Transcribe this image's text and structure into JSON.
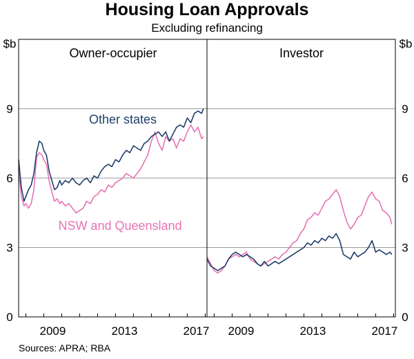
{
  "title": "Housing Loan Approvals",
  "subtitle": "Excluding refinancing",
  "source": "Sources: APRA; RBA",
  "chart_data": [
    {
      "type": "line",
      "panel": "Owner-occupier",
      "ylabel": "$b",
      "ylim": [
        0,
        12
      ],
      "yticks": [
        0,
        3,
        6,
        9
      ],
      "xlim": [
        2007.6,
        2018.1
      ],
      "xticks": [
        2009,
        2013,
        2017
      ],
      "xtick_labels": [
        "2009",
        "2013",
        "2017"
      ],
      "grid": true,
      "series": [
        {
          "name": "Other states",
          "color": "#1f3f6b",
          "x": [
            2007.6,
            2007.75,
            2007.9,
            2008.0,
            2008.15,
            2008.3,
            2008.45,
            2008.6,
            2008.75,
            2008.9,
            2009.0,
            2009.15,
            2009.3,
            2009.45,
            2009.6,
            2009.75,
            2009.9,
            2010.0,
            2010.2,
            2010.4,
            2010.6,
            2010.8,
            2011.0,
            2011.2,
            2011.4,
            2011.6,
            2011.8,
            2012.0,
            2012.2,
            2012.4,
            2012.6,
            2012.8,
            2013.0,
            2013.2,
            2013.4,
            2013.6,
            2013.8,
            2014.0,
            2014.2,
            2014.4,
            2014.6,
            2014.8,
            2015.0,
            2015.2,
            2015.4,
            2015.6,
            2015.8,
            2016.0,
            2016.2,
            2016.4,
            2016.6,
            2016.8,
            2017.0,
            2017.2,
            2017.4,
            2017.6,
            2017.8,
            2017.9
          ],
          "values": [
            6.8,
            5.6,
            5.0,
            5.2,
            5.5,
            5.7,
            6.2,
            7.1,
            7.6,
            7.5,
            7.2,
            7.0,
            6.3,
            5.9,
            5.5,
            5.6,
            5.9,
            5.7,
            5.9,
            5.8,
            6.0,
            5.8,
            5.7,
            5.9,
            6.0,
            5.8,
            6.1,
            6.0,
            6.3,
            6.5,
            6.6,
            6.5,
            6.8,
            6.7,
            7.0,
            7.2,
            7.1,
            7.4,
            7.3,
            7.2,
            7.5,
            7.6,
            7.8,
            7.9,
            8.0,
            7.8,
            8.0,
            7.6,
            7.9,
            8.2,
            8.3,
            8.2,
            8.6,
            8.4,
            8.8,
            8.9,
            8.8,
            9.0
          ]
        },
        {
          "name": "NSW and Queensland",
          "color": "#e673b4",
          "x": [
            2007.6,
            2007.75,
            2007.9,
            2008.0,
            2008.15,
            2008.3,
            2008.45,
            2008.6,
            2008.75,
            2008.9,
            2009.0,
            2009.15,
            2009.3,
            2009.45,
            2009.6,
            2009.75,
            2009.9,
            2010.0,
            2010.2,
            2010.4,
            2010.6,
            2010.8,
            2011.0,
            2011.2,
            2011.4,
            2011.6,
            2011.8,
            2012.0,
            2012.2,
            2012.4,
            2012.6,
            2012.8,
            2013.0,
            2013.2,
            2013.4,
            2013.6,
            2013.8,
            2014.0,
            2014.2,
            2014.4,
            2014.6,
            2014.8,
            2015.0,
            2015.2,
            2015.4,
            2015.6,
            2015.8,
            2016.0,
            2016.2,
            2016.4,
            2016.6,
            2016.8,
            2017.0,
            2017.2,
            2017.4,
            2017.6,
            2017.8,
            2017.9
          ],
          "values": [
            6.3,
            5.2,
            4.8,
            4.9,
            4.7,
            4.9,
            5.5,
            6.9,
            7.1,
            7.0,
            6.8,
            6.6,
            5.9,
            5.4,
            5.0,
            5.1,
            4.9,
            5.0,
            4.8,
            4.9,
            4.7,
            4.5,
            4.6,
            4.7,
            5.0,
            4.9,
            5.2,
            5.3,
            5.5,
            5.4,
            5.7,
            5.6,
            5.8,
            5.9,
            6.0,
            6.2,
            6.1,
            6.0,
            6.2,
            6.4,
            6.7,
            7.0,
            7.6,
            8.0,
            7.5,
            7.2,
            7.8,
            7.6,
            7.7,
            7.3,
            7.7,
            7.6,
            8.0,
            8.3,
            8.0,
            8.2,
            7.7,
            7.8
          ]
        }
      ]
    },
    {
      "type": "line",
      "panel": "Investor",
      "ylabel": "$b",
      "ylim": [
        0,
        12
      ],
      "yticks": [
        0,
        3,
        6,
        9
      ],
      "xlim": [
        2007.6,
        2018.1
      ],
      "xticks": [
        2009,
        2013,
        2017
      ],
      "xtick_labels": [
        "2009",
        "2013",
        "2017"
      ],
      "grid": true,
      "series": [
        {
          "name": "Other states",
          "color": "#1f3f6b",
          "x": [
            2007.6,
            2007.8,
            2008.0,
            2008.2,
            2008.4,
            2008.6,
            2008.8,
            2009.0,
            2009.2,
            2009.4,
            2009.6,
            2009.8,
            2010.0,
            2010.2,
            2010.4,
            2010.6,
            2010.8,
            2011.0,
            2011.2,
            2011.4,
            2011.6,
            2011.8,
            2012.0,
            2012.2,
            2012.4,
            2012.6,
            2012.8,
            2013.0,
            2013.2,
            2013.4,
            2013.6,
            2013.8,
            2014.0,
            2014.2,
            2014.4,
            2014.6,
            2014.8,
            2015.0,
            2015.2,
            2015.4,
            2015.6,
            2015.8,
            2016.0,
            2016.2,
            2016.4,
            2016.6,
            2016.8,
            2017.0,
            2017.2,
            2017.4,
            2017.6,
            2017.8,
            2017.9
          ],
          "values": [
            2.5,
            2.2,
            2.1,
            2.0,
            2.1,
            2.2,
            2.5,
            2.7,
            2.8,
            2.7,
            2.6,
            2.7,
            2.6,
            2.5,
            2.3,
            2.2,
            2.4,
            2.2,
            2.3,
            2.4,
            2.3,
            2.4,
            2.5,
            2.6,
            2.7,
            2.8,
            2.9,
            3.0,
            3.2,
            3.1,
            3.3,
            3.2,
            3.4,
            3.3,
            3.5,
            3.4,
            3.6,
            3.3,
            2.7,
            2.6,
            2.5,
            2.8,
            2.6,
            2.7,
            2.8,
            3.0,
            3.3,
            2.8,
            2.9,
            2.8,
            2.7,
            2.8,
            2.7
          ]
        },
        {
          "name": "NSW and Queensland",
          "color": "#e673b4",
          "x": [
            2007.6,
            2007.8,
            2008.0,
            2008.2,
            2008.4,
            2008.6,
            2008.8,
            2009.0,
            2009.2,
            2009.4,
            2009.6,
            2009.8,
            2010.0,
            2010.2,
            2010.4,
            2010.6,
            2010.8,
            2011.0,
            2011.2,
            2011.4,
            2011.6,
            2011.8,
            2012.0,
            2012.2,
            2012.4,
            2012.6,
            2012.8,
            2013.0,
            2013.2,
            2013.4,
            2013.6,
            2013.8,
            2014.0,
            2014.2,
            2014.4,
            2014.6,
            2014.8,
            2015.0,
            2015.2,
            2015.4,
            2015.6,
            2015.8,
            2016.0,
            2016.2,
            2016.4,
            2016.6,
            2016.8,
            2017.0,
            2017.2,
            2017.4,
            2017.6,
            2017.8,
            2017.9
          ],
          "values": [
            2.6,
            2.3,
            2.0,
            1.9,
            2.0,
            2.2,
            2.5,
            2.6,
            2.7,
            2.6,
            2.7,
            2.8,
            2.5,
            2.4,
            2.3,
            2.2,
            2.3,
            2.4,
            2.5,
            2.6,
            2.5,
            2.7,
            2.8,
            3.0,
            3.2,
            3.3,
            3.6,
            3.8,
            4.2,
            4.3,
            4.5,
            4.4,
            4.7,
            5.0,
            5.1,
            5.3,
            5.5,
            5.2,
            4.6,
            4.1,
            3.8,
            4.0,
            4.3,
            4.4,
            4.8,
            5.2,
            5.4,
            5.1,
            5.0,
            4.6,
            4.5,
            4.3,
            4.0
          ]
        }
      ]
    }
  ],
  "panel_labels": {
    "left_ylabel": "$b",
    "right_ylabel": "$b",
    "series_label_other": "Other states",
    "series_label_nsw": "NSW and Queensland"
  }
}
